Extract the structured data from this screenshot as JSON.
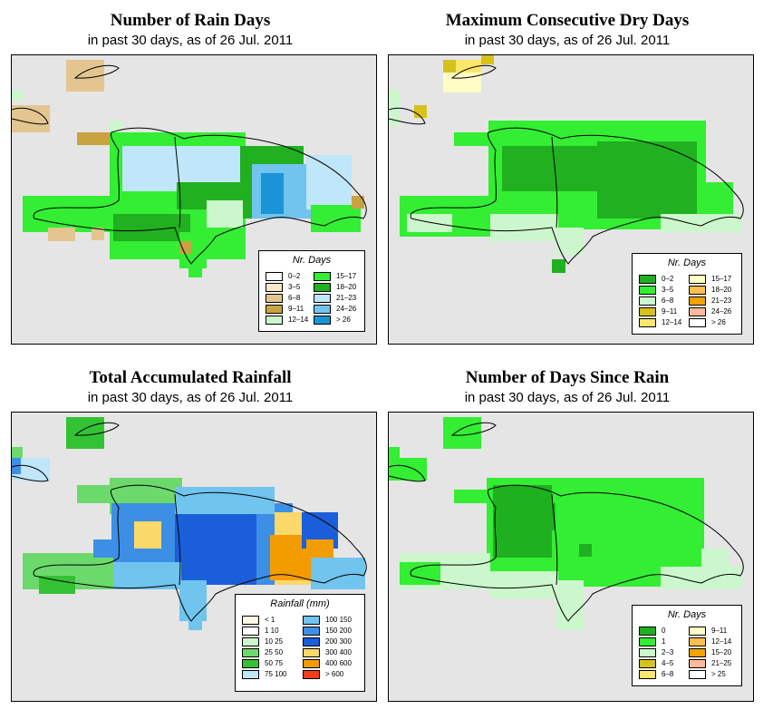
{
  "panels": [
    {
      "id": "rain-days",
      "title": "Number of Rain Days",
      "subtitle": "in past 30 days, as of  26 Jul. 2011",
      "legend": {
        "title": "Nr. Days",
        "items": [
          {
            "label": "0–2",
            "color": "#ffffff"
          },
          {
            "label": "3–5",
            "color": "#f5e8cc"
          },
          {
            "label": "6–8",
            "color": "#e3c590"
          },
          {
            "label": "9–11",
            "color": "#c9a33f"
          },
          {
            "label": "12–14",
            "color": "#ccf7cc"
          },
          {
            "label": "15–17",
            "color": "#33ee33"
          },
          {
            "label": "18–20",
            "color": "#20b020"
          },
          {
            "label": "21–23",
            "color": "#bfe6f9"
          },
          {
            "label": "24–26",
            "color": "#70c4ee"
          },
          {
            "label": "> 26",
            "color": "#1a94d6"
          }
        ]
      }
    },
    {
      "id": "max-dry-days",
      "title": "Maximum Consecutive Dry Days",
      "subtitle": "in past 30 days, as of  26 Jul. 2011",
      "legend": {
        "title": "Nr. Days",
        "items": [
          {
            "label": "0–2",
            "color": "#1fb01f"
          },
          {
            "label": "3–5",
            "color": "#33ee33"
          },
          {
            "label": "6–8",
            "color": "#ccf7cc"
          },
          {
            "label": "9–11",
            "color": "#d6c21a"
          },
          {
            "label": "12–14",
            "color": "#fbe76a"
          },
          {
            "label": "15–17",
            "color": "#fffdc4"
          },
          {
            "label": "18–20",
            "color": "#ffbe4d"
          },
          {
            "label": "21–23",
            "color": "#f3a400"
          },
          {
            "label": "24–26",
            "color": "#ffb89a"
          },
          {
            "label": "> 26",
            "color": "#ffffff"
          }
        ]
      }
    },
    {
      "id": "total-rainfall",
      "title": "Total Accumulated Rainfall",
      "subtitle": "in past 30 days, as of  26 Jul. 2011",
      "legend": {
        "title": "Rainfall (mm)",
        "items": [
          {
            "label": "< 1",
            "color": "#fff6e6"
          },
          {
            "label": "1    10",
            "color": "#ffffff"
          },
          {
            "label": "10    25",
            "color": "#ccf7cc"
          },
          {
            "label": "25    50",
            "color": "#6cd96c"
          },
          {
            "label": "50    75",
            "color": "#33c233"
          },
          {
            "label": "75    100",
            "color": "#bfe6f9"
          },
          {
            "label": "100    150",
            "color": "#70c4ee"
          },
          {
            "label": "150    200",
            "color": "#3d8fe6"
          },
          {
            "label": "200    300",
            "color": "#1a5fd9"
          },
          {
            "label": "300    400",
            "color": "#fbd86a"
          },
          {
            "label": "400    600",
            "color": "#f39c00"
          },
          {
            "label": "> 600",
            "color": "#f23c1a"
          }
        ]
      }
    },
    {
      "id": "days-since-rain",
      "title": "Number of Days Since Rain",
      "subtitle": "in past 30 days, as of  26 Jul. 2011",
      "legend": {
        "title": "Nr. Days",
        "items": [
          {
            "label": "0",
            "color": "#1fb01f"
          },
          {
            "label": "1",
            "color": "#33ee33"
          },
          {
            "label": "2–3",
            "color": "#ccf7cc"
          },
          {
            "label": "4–5",
            "color": "#d6c21a"
          },
          {
            "label": "6–8",
            "color": "#fbe76a"
          },
          {
            "label": "9–11",
            "color": "#fffdc4"
          },
          {
            "label": "12–14",
            "color": "#ffbe4d"
          },
          {
            "label": "15–20",
            "color": "#f3a400"
          },
          {
            "label": "21–25",
            "color": "#ffb89a"
          },
          {
            "label": "> 25",
            "color": "#ffffff"
          }
        ]
      }
    }
  ]
}
